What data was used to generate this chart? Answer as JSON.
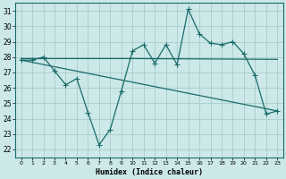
{
  "xlabel": "Humidex (Indice chaleur)",
  "bg_color": "#cce8e8",
  "grid_color": "#aacccc",
  "line_color": "#1a6b6b",
  "xlim": [
    -0.5,
    23.5
  ],
  "ylim": [
    21.5,
    31.5
  ],
  "yticks": [
    22,
    23,
    24,
    25,
    26,
    27,
    28,
    29,
    30,
    31
  ],
  "xticks": [
    0,
    1,
    2,
    3,
    4,
    5,
    6,
    7,
    8,
    9,
    10,
    11,
    12,
    13,
    14,
    15,
    16,
    17,
    18,
    19,
    20,
    21,
    22,
    23
  ],
  "line1_x": [
    0,
    1,
    2,
    3,
    4,
    5,
    6,
    7,
    8,
    9,
    10,
    11,
    12,
    13,
    14,
    15,
    16,
    17,
    18,
    19,
    20,
    21,
    22,
    23
  ],
  "line1_y": [
    27.8,
    27.8,
    28.0,
    27.1,
    26.2,
    26.6,
    24.4,
    22.3,
    23.3,
    25.8,
    28.4,
    28.8,
    27.6,
    28.8,
    27.5,
    31.1,
    29.5,
    28.9,
    28.8,
    29.0,
    28.2,
    26.8,
    24.3,
    24.5
  ],
  "line2_x": [
    0,
    10,
    23
  ],
  "line2_y": [
    27.9,
    27.9,
    27.85
  ],
  "line3_x": [
    0,
    23
  ],
  "line3_y": [
    27.8,
    24.5
  ],
  "marker": "+",
  "marker_size": 4,
  "linewidth": 0.9
}
